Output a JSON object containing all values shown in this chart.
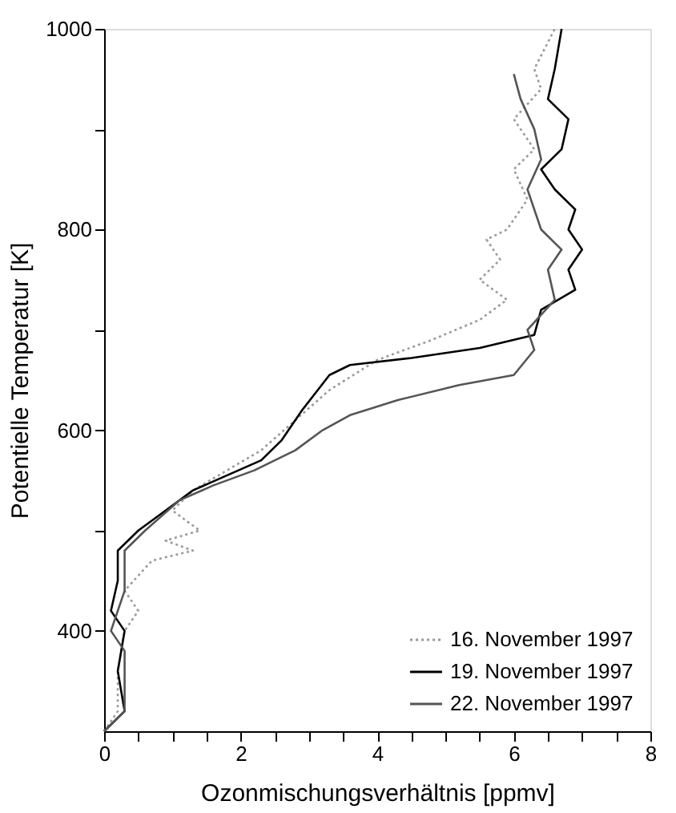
{
  "chart_data": {
    "type": "line",
    "xlabel": "Ozonmischungsverhältnis [ppmv]",
    "ylabel": "Potentielle Temperatur [K]",
    "xlim": [
      0,
      8
    ],
    "ylim": [
      300,
      1000
    ],
    "xticks": [
      0,
      {
        "value": 0.5,
        "label": null
      },
      {
        "value": 1,
        "label": null
      },
      {
        "value": 1.5,
        "label": null
      },
      2,
      {
        "value": 2.5,
        "label": null
      },
      {
        "value": 3,
        "label": null
      },
      {
        "value": 3.5,
        "label": null
      },
      4,
      {
        "value": 4.5,
        "label": null
      },
      {
        "value": 5,
        "label": null
      },
      {
        "value": 5.5,
        "label": null
      },
      6,
      {
        "value": 6.5,
        "label": null
      },
      {
        "value": 7,
        "label": null
      },
      {
        "value": 7.5,
        "label": null
      },
      8
    ],
    "yticks": [
      400,
      {
        "value": 500,
        "label": null
      },
      600,
      {
        "value": 700,
        "label": null
      },
      800,
      {
        "value": 900,
        "label": null
      },
      1000
    ],
    "grid": false,
    "legend": "bottom right",
    "marker": "none",
    "series": [
      {
        "name": "16. November 1997",
        "color": "#9a9a9a",
        "line_style": "dotted",
        "x": [
          0,
          0.2,
          0.2,
          0.3,
          0.5,
          0.3,
          0.7,
          1.3,
          0.9,
          1.4,
          1.0,
          1.3,
          1.8,
          2.3,
          2.8,
          3.3,
          4.0,
          4.8,
          5.5,
          5.9,
          5.5,
          5.8,
          5.6,
          5.9,
          6.2,
          6.0,
          6.3,
          6.0,
          6.4,
          6.3,
          6.6
        ],
        "values": [
          300,
          320,
          360,
          400,
          420,
          440,
          470,
          480,
          490,
          500,
          520,
          540,
          560,
          580,
          610,
          640,
          670,
          690,
          710,
          730,
          750,
          770,
          790,
          800,
          830,
          860,
          880,
          910,
          940,
          960,
          1000
        ]
      },
      {
        "name": "19. November 1997",
        "color": "#000000",
        "line_style": "solid",
        "x": [
          0,
          0.3,
          0.2,
          0.3,
          0.1,
          0.2,
          0.2,
          0.5,
          0.9,
          1.3,
          1.8,
          2.3,
          2.6,
          2.9,
          3.3,
          3.6,
          4.5,
          5.5,
          6.3,
          6.4,
          6.9,
          6.8,
          7.0,
          6.8,
          6.9,
          6.6,
          6.4,
          6.7,
          6.8,
          6.5,
          6.6,
          6.7
        ],
        "values": [
          300,
          320,
          360,
          400,
          420,
          450,
          480,
          500,
          520,
          540,
          555,
          570,
          590,
          620,
          655,
          665,
          672,
          682,
          695,
          720,
          740,
          760,
          780,
          800,
          820,
          840,
          860,
          880,
          910,
          930,
          960,
          1000
        ]
      },
      {
        "name": "22. November 1997",
        "color": "#555555",
        "line_style": "solid",
        "x": [
          0,
          0.3,
          0.3,
          0.1,
          0.3,
          0.3,
          0.6,
          1.1,
          1.6,
          2.2,
          2.8,
          3.2,
          3.6,
          4.3,
          5.2,
          6.0,
          6.3,
          6.2,
          6.6,
          6.5,
          6.7,
          6.4,
          6.2,
          6.4,
          6.3,
          6.1,
          6.0
        ],
        "values": [
          300,
          320,
          380,
          400,
          440,
          480,
          500,
          530,
          545,
          560,
          580,
          600,
          615,
          630,
          645,
          655,
          680,
          700,
          730,
          760,
          780,
          800,
          840,
          870,
          900,
          930,
          955
        ]
      }
    ]
  }
}
